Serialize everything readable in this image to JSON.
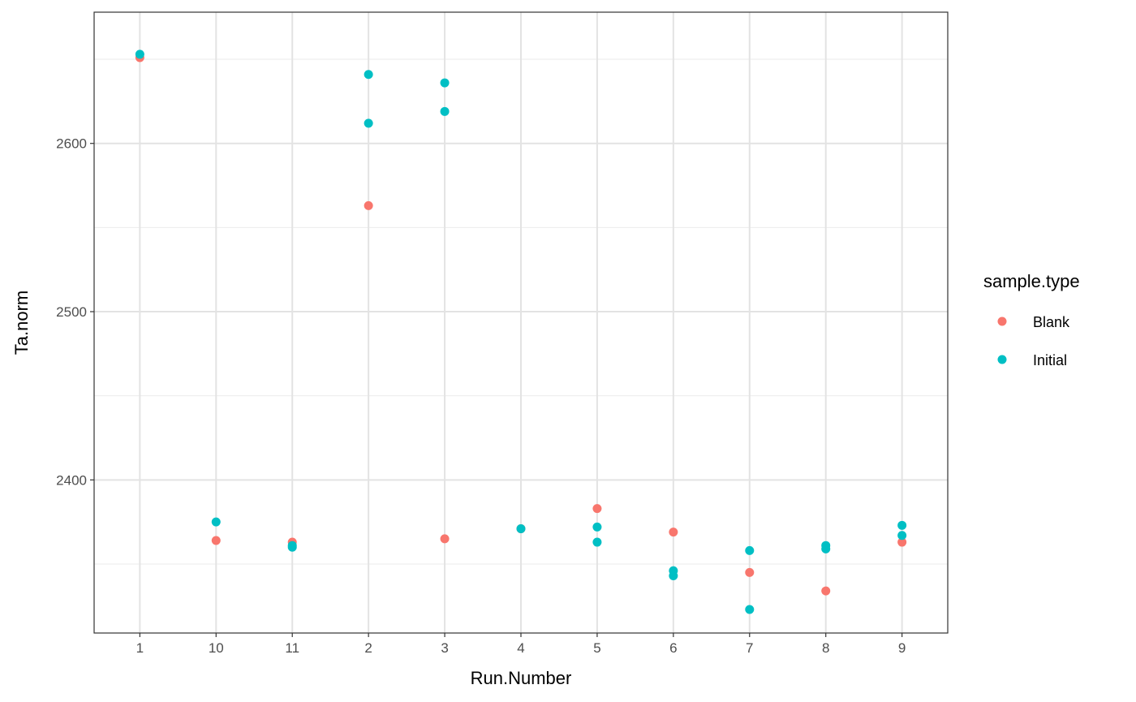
{
  "chart_data": {
    "type": "scatter",
    "title": "",
    "xlabel": "Run.Number",
    "ylabel": "Ta.norm",
    "categories": [
      "1",
      "10",
      "11",
      "2",
      "3",
      "4",
      "5",
      "6",
      "7",
      "8",
      "9"
    ],
    "yticks": [
      2400,
      2500,
      2600
    ],
    "ylim": [
      2309,
      2678
    ],
    "grid": true,
    "legend": {
      "title": "sample.type",
      "position": "right"
    },
    "series": [
      {
        "name": "Blank",
        "color": "#F8766D",
        "points": [
          {
            "x": "1",
            "y": 2651
          },
          {
            "x": "10",
            "y": 2364
          },
          {
            "x": "11",
            "y": 2363
          },
          {
            "x": "2",
            "y": 2563
          },
          {
            "x": "3",
            "y": 2365
          },
          {
            "x": "4",
            "y": 2371
          },
          {
            "x": "5",
            "y": 2383
          },
          {
            "x": "6",
            "y": 2369
          },
          {
            "x": "7",
            "y": 2345
          },
          {
            "x": "8",
            "y": 2334
          },
          {
            "x": "9",
            "y": 2363
          }
        ]
      },
      {
        "name": "Initial",
        "color": "#00BFC4",
        "points": [
          {
            "x": "1",
            "y": 2653
          },
          {
            "x": "10",
            "y": 2375
          },
          {
            "x": "11",
            "y": 2361
          },
          {
            "x": "11",
            "y": 2360
          },
          {
            "x": "2",
            "y": 2641
          },
          {
            "x": "2",
            "y": 2612
          },
          {
            "x": "3",
            "y": 2636
          },
          {
            "x": "3",
            "y": 2619
          },
          {
            "x": "4",
            "y": 2371
          },
          {
            "x": "5",
            "y": 2372
          },
          {
            "x": "5",
            "y": 2363
          },
          {
            "x": "6",
            "y": 2346
          },
          {
            "x": "6",
            "y": 2343
          },
          {
            "x": "7",
            "y": 2358
          },
          {
            "x": "7",
            "y": 2323
          },
          {
            "x": "8",
            "y": 2361
          },
          {
            "x": "8",
            "y": 2359
          },
          {
            "x": "9",
            "y": 2373
          },
          {
            "x": "9",
            "y": 2367
          }
        ]
      }
    ]
  }
}
